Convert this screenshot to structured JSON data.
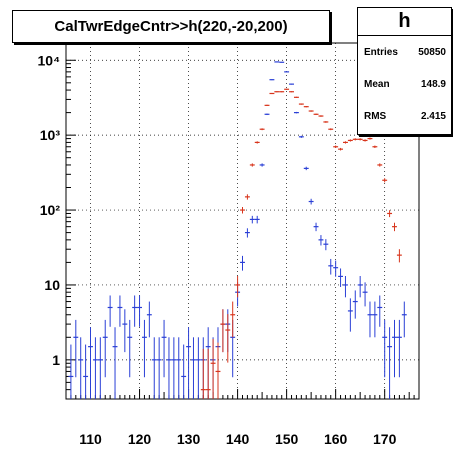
{
  "title": "CalTwrEdgeCntr>>h(220,-20,200)",
  "stats": {
    "name": "h",
    "rows": [
      {
        "label": "Entries",
        "value": "50850"
      },
      {
        "label": "Mean",
        "value": "148.9"
      },
      {
        "label": "RMS",
        "value": "2.415"
      }
    ]
  },
  "chart_data": {
    "type": "scatter",
    "title": "CalTwrEdgeCntr>>h(220,-20,200)",
    "xlim": [
      105,
      177
    ],
    "ylim": [
      0.3,
      17000
    ],
    "yscale": "log",
    "grid": true,
    "x_ticks": [
      110,
      120,
      130,
      140,
      150,
      160,
      170
    ],
    "x_tick_labels": [
      "110",
      "120",
      "130",
      "140",
      "150",
      "160",
      "170"
    ],
    "y_ticks": [
      1,
      10,
      100,
      1000,
      10000
    ],
    "y_tick_labels": [
      "1",
      "10",
      "10²",
      "10³",
      "10⁴"
    ],
    "bin_width": 1,
    "series": [
      {
        "color": "#2a3fd6",
        "points": [
          [
            106,
            0.6
          ],
          [
            107,
            2
          ],
          [
            108,
            1
          ],
          [
            109,
            0.6
          ],
          [
            110,
            1.5
          ],
          [
            111,
            1
          ],
          [
            112,
            1
          ],
          [
            113,
            2
          ],
          [
            114,
            5
          ],
          [
            115,
            1.5
          ],
          [
            116,
            5
          ],
          [
            117,
            3
          ],
          [
            118,
            2
          ],
          [
            119,
            5
          ],
          [
            120,
            5
          ],
          [
            121,
            2
          ],
          [
            122,
            4
          ],
          [
            123,
            1
          ],
          [
            124,
            1
          ],
          [
            125,
            2
          ],
          [
            126,
            1
          ],
          [
            127,
            1
          ],
          [
            128,
            1
          ],
          [
            129,
            0.6
          ],
          [
            130,
            1.5
          ],
          [
            131,
            1
          ],
          [
            132,
            1
          ],
          [
            133,
            1
          ],
          [
            134,
            1.5
          ],
          [
            135,
            1
          ],
          [
            136,
            1.5
          ],
          [
            137,
            3
          ],
          [
            138,
            3
          ],
          [
            139,
            2
          ],
          [
            140,
            8
          ],
          [
            141,
            20
          ],
          [
            142,
            50
          ],
          [
            143,
            75
          ],
          [
            144,
            75
          ],
          [
            145,
            400
          ],
          [
            146,
            1900
          ],
          [
            147,
            5500
          ],
          [
            148,
            9500
          ],
          [
            149,
            9400
          ],
          [
            150,
            7000
          ],
          [
            151,
            4800
          ],
          [
            152,
            2000
          ],
          [
            153,
            950
          ],
          [
            154,
            360
          ],
          [
            155,
            130
          ],
          [
            156,
            60
          ],
          [
            157,
            40
          ],
          [
            158,
            35
          ],
          [
            159,
            18
          ],
          [
            160,
            17
          ],
          [
            161,
            13
          ],
          [
            162,
            10
          ],
          [
            163,
            4.5
          ],
          [
            164,
            6
          ],
          [
            165,
            10
          ],
          [
            166,
            8
          ],
          [
            167,
            4
          ],
          [
            168,
            4
          ],
          [
            169,
            5
          ],
          [
            170,
            2
          ],
          [
            171,
            1.5
          ],
          [
            172,
            2
          ],
          [
            173,
            2
          ],
          [
            174,
            4
          ]
        ]
      },
      {
        "color": "#d8351c",
        "points": [
          [
            133,
            0.4
          ],
          [
            134,
            0.4
          ],
          [
            135,
            0.9
          ],
          [
            136,
            0.7
          ],
          [
            137,
            3
          ],
          [
            138,
            2.5
          ],
          [
            139,
            4
          ],
          [
            140,
            10
          ],
          [
            141,
            100
          ],
          [
            142,
            150
          ],
          [
            143,
            400
          ],
          [
            144,
            800
          ],
          [
            145,
            1200
          ],
          [
            146,
            2500
          ],
          [
            147,
            3600
          ],
          [
            148,
            3800
          ],
          [
            149,
            3800
          ],
          [
            150,
            4100
          ],
          [
            151,
            3800
          ],
          [
            152,
            3200
          ],
          [
            153,
            2600
          ],
          [
            154,
            2400
          ],
          [
            155,
            2100
          ],
          [
            156,
            1900
          ],
          [
            157,
            1800
          ],
          [
            158,
            1500
          ],
          [
            159,
            1200
          ],
          [
            160,
            700
          ],
          [
            161,
            650
          ],
          [
            162,
            800
          ],
          [
            163,
            850
          ],
          [
            164,
            880
          ],
          [
            165,
            880
          ],
          [
            166,
            850
          ],
          [
            167,
            900
          ],
          [
            168,
            700
          ],
          [
            169,
            400
          ],
          [
            170,
            250
          ],
          [
            171,
            90
          ],
          [
            172,
            60
          ],
          [
            173,
            25
          ]
        ]
      }
    ]
  }
}
